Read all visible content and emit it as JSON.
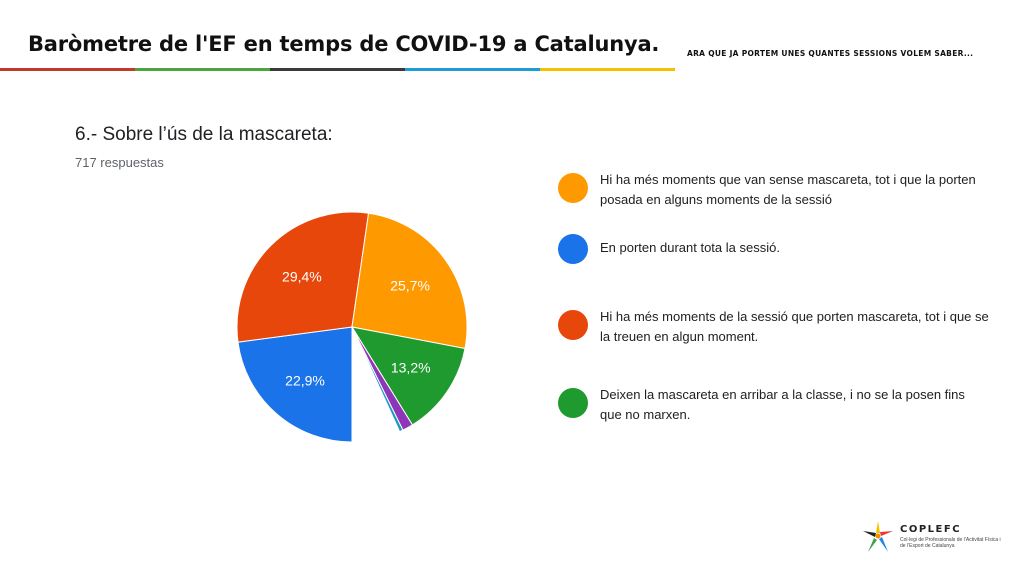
{
  "header": {
    "title": "Baròmetre de l'EF en temps de COVID-19 a Catalunya.",
    "subtitle": "ARA QUE JA PORTEM UNES QUANTES SESSIONS VOLEM SABER..."
  },
  "survey": {
    "question": "6.- Sobre l’ús de la mascareta:",
    "responses": "717 respuestas"
  },
  "legend": [
    {
      "label": "Hi ha més moments que van sense mascareta, tot i que la porten posada en alguns moments de la sessió",
      "color": "#ff9900"
    },
    {
      "label": "En porten durant tota la sessió.",
      "color": "#1a73e8"
    },
    {
      "label": "Hi ha més moments de la sessió que porten mascareta, tot i que se la treuen en algun moment.",
      "color": "#e8470c"
    },
    {
      "label": "Deixen la mascareta en arribar a la classe, i no se la posen fins que no marxen.",
      "color": "#1e9a2f"
    }
  ],
  "chart_data": {
    "type": "pie",
    "title": "6.- Sobre l’ús de la mascareta:",
    "slices": [
      {
        "category": "En porten durant tota la sessió.",
        "value": 22.9,
        "label": "22,9%",
        "color": "#1a73e8",
        "exploded": false
      },
      {
        "category": "Hi ha més moments de la sessió que porten mascareta, tot i que se la treuen en algun moment.",
        "value": 29.4,
        "label": "29,4%",
        "color": "#e8470c",
        "exploded": false
      },
      {
        "category": "Hi ha més moments que van sense mascareta, tot i que la porten posada en alguns moments de la sessió",
        "value": 25.7,
        "label": "25,7%",
        "color": "#ff9900",
        "exploded": false
      },
      {
        "category": "Deixen la mascareta en arribar a la classe, i no se la posen fins que no marxen.",
        "value": 13.2,
        "label": "13,2%",
        "color": "#1e9a2f",
        "exploded": false
      },
      {
        "category": "",
        "value": 1.5,
        "label": "",
        "color": "#8e35b8",
        "exploded": false
      },
      {
        "category": "",
        "value": 0.5,
        "label": "",
        "color": "#2196c8",
        "exploded": false
      },
      {
        "category": "",
        "value": 6.8,
        "label": "",
        "color": "#ffffff",
        "exploded": true
      }
    ],
    "legend_position": "right"
  },
  "logo": {
    "name": "COPLEFC",
    "description": "Col·legi de Professionals de l’Activitat Física i de l’Esport de Catalunya"
  }
}
